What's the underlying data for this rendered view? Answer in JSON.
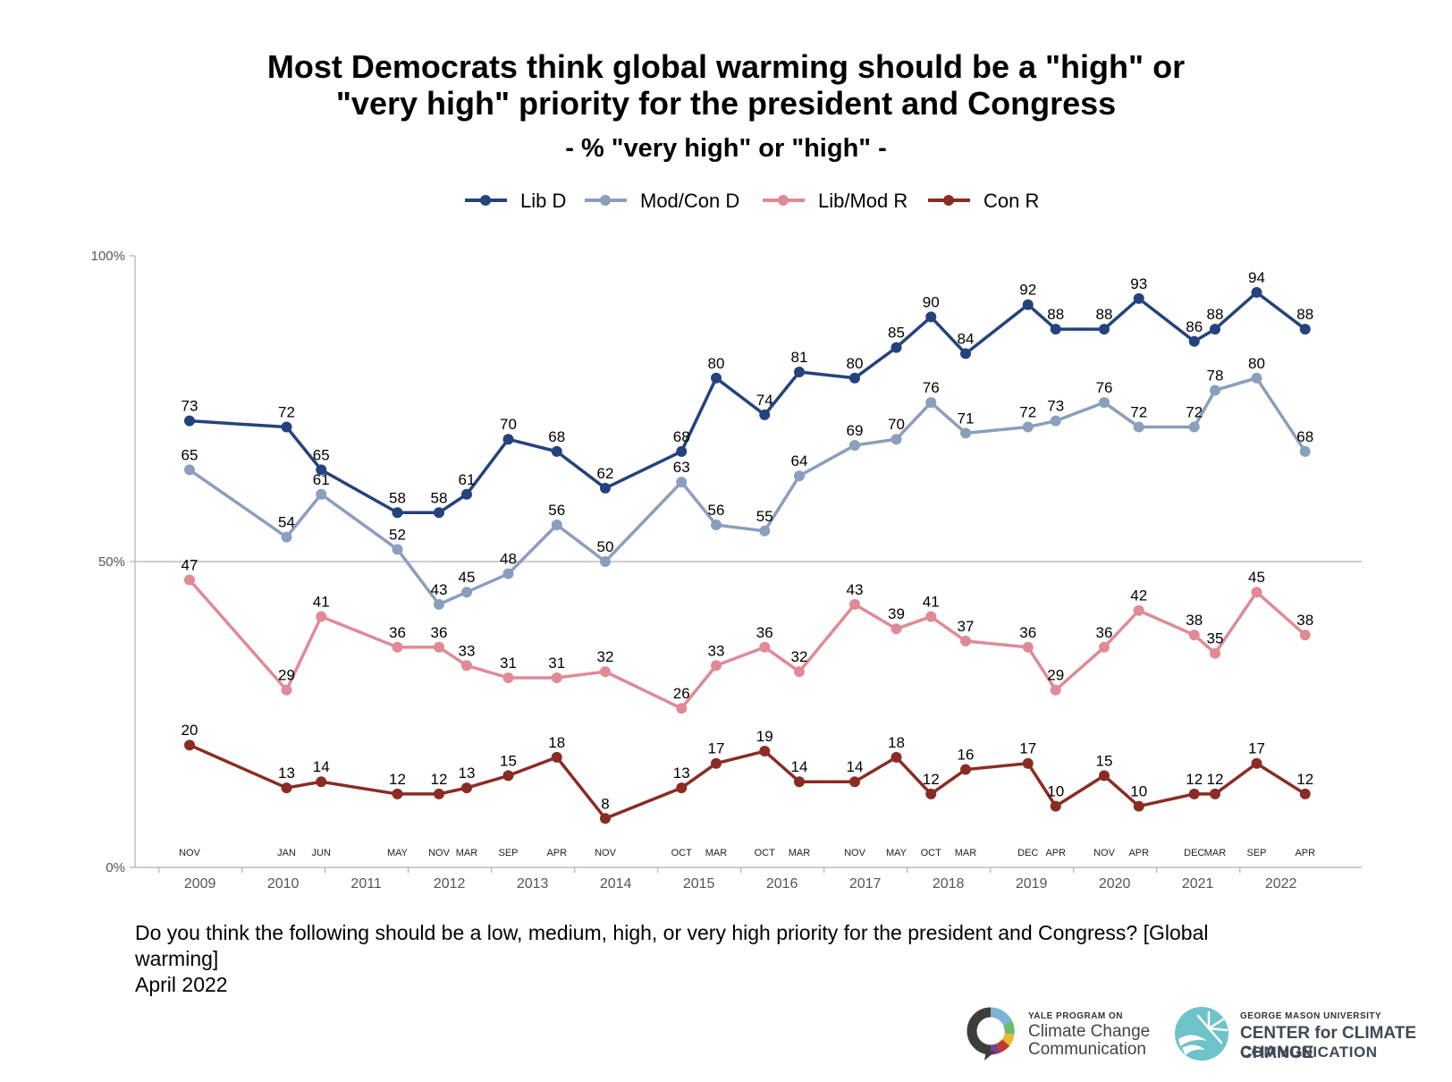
{
  "title_line1": "Most Democrats think global warming should be a \"high\" or",
  "title_line2": "\"very high\" priority for the president and Congress",
  "subtitle": "- % \"very high\" or \"high\" -",
  "question_line1": "Do you think the following should be a low, medium, high, or very high priority for the president and Congress? [Global",
  "question_line2": "warming]",
  "survey_date": "April 2022",
  "logos": {
    "yale": {
      "small": "YALE PROGRAM ON",
      "line1": "Climate Change",
      "line2": "Communication"
    },
    "gmu": {
      "small": "GEORGE MASON UNIVERSITY",
      "line1": "CENTER for CLIMATE CHANGE",
      "line2": "COMMUNICATION"
    }
  },
  "chart_data": {
    "type": "line",
    "title": "Most Democrats think global warming should be a \"high\" or \"very high\" priority for the president and Congress",
    "subtitle": "- % \"very high\" or \"high\" -",
    "ylim": [
      0,
      100
    ],
    "y_ticks": [
      "0%",
      "50%",
      "100%"
    ],
    "y_tick_values": [
      0,
      50,
      100
    ],
    "gridlines": [
      50
    ],
    "legend_position": "top",
    "x": [
      "2008-11",
      "2010-01",
      "2010-06",
      "2011-05",
      "2011-11",
      "2012-03",
      "2012-09",
      "2013-04",
      "2013-11",
      "2014-10",
      "2015-03",
      "2015-10",
      "2016-03",
      "2016-11",
      "2017-05",
      "2017-10",
      "2018-03",
      "2018-12",
      "2019-04",
      "2019-11",
      "2020-04",
      "2020-12",
      "2021-03",
      "2021-09",
      "2022-04"
    ],
    "x_survey_labels": [
      "NOV",
      "JAN",
      "JUN",
      "MAY",
      "NOV",
      "MAR",
      "SEP",
      "APR",
      "NOV",
      "OCT",
      "MAR",
      "OCT",
      "MAR",
      "NOV",
      "MAY",
      "OCT",
      "MAR",
      "DEC",
      "APR",
      "NOV",
      "APR",
      "DEC",
      "MAR",
      "SEP",
      "APR"
    ],
    "x_year_labels": [
      "2009",
      "2010",
      "2011",
      "2012",
      "2013",
      "2014",
      "2015",
      "2016",
      "2017",
      "2018",
      "2019",
      "2020",
      "2021",
      "2022"
    ],
    "series": [
      {
        "name": "Lib D",
        "color": "#24427d",
        "values": [
          73,
          72,
          65,
          58,
          58,
          61,
          70,
          68,
          62,
          68,
          80,
          74,
          81,
          80,
          85,
          90,
          84,
          92,
          88,
          88,
          93,
          86,
          88,
          94,
          88
        ]
      },
      {
        "name": "Mod/Con D",
        "color": "#8a9ebd",
        "values": [
          65,
          54,
          61,
          52,
          43,
          45,
          48,
          56,
          50,
          63,
          56,
          55,
          64,
          69,
          70,
          76,
          71,
          72,
          73,
          76,
          72,
          72,
          78,
          80,
          68
        ]
      },
      {
        "name": "Lib/Mod R",
        "color": "#e08a96",
        "values": [
          47,
          29,
          41,
          36,
          36,
          33,
          31,
          31,
          32,
          26,
          33,
          36,
          32,
          43,
          39,
          41,
          37,
          36,
          29,
          36,
          42,
          38,
          35,
          45,
          38
        ]
      },
      {
        "name": "Con R",
        "color": "#8a2c24",
        "values": [
          20,
          13,
          14,
          12,
          12,
          13,
          15,
          18,
          8,
          13,
          17,
          19,
          14,
          14,
          18,
          12,
          16,
          17,
          10,
          15,
          10,
          12,
          12,
          17,
          12
        ]
      }
    ]
  }
}
